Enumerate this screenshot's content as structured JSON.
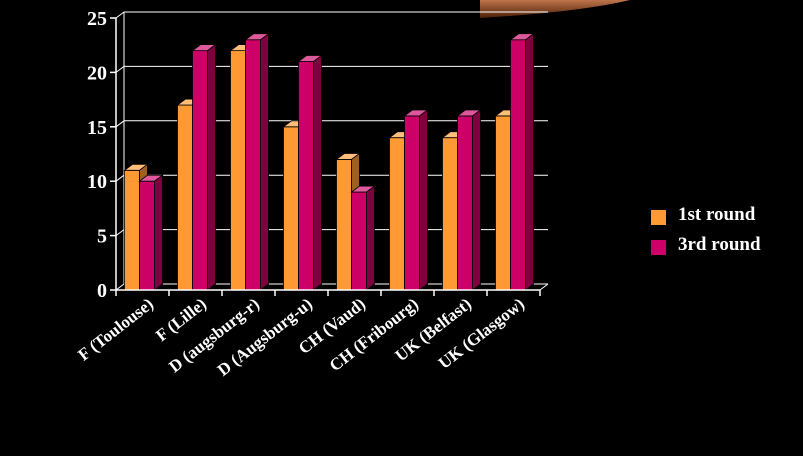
{
  "colors": {
    "background": "#000000",
    "series1": "#ff9933",
    "series2": "#cc0066",
    "axis": "#ffffff",
    "accent_glow": "#a8460f"
  },
  "chart_data": {
    "type": "bar",
    "style": "3d-clustered",
    "categories": [
      "F (Toulouse)",
      "F (Lille)",
      "D (augsburg-r)",
      "D (Augsburg-u)",
      "CH (Vaud)",
      "CH (Fribourg)",
      "UK (Belfast)",
      "UK (Glasgow)"
    ],
    "series": [
      {
        "name": "1st round",
        "values": [
          11,
          17,
          22,
          15,
          12,
          14,
          14,
          16
        ]
      },
      {
        "name": "3rd round",
        "values": [
          10,
          22,
          23,
          21,
          9,
          16,
          16,
          23
        ]
      }
    ],
    "y_ticks": [
      "0",
      "5",
      "10",
      "15",
      "20",
      "25"
    ],
    "ylim": [
      0,
      25
    ],
    "grid": true,
    "legend_position": "right"
  }
}
